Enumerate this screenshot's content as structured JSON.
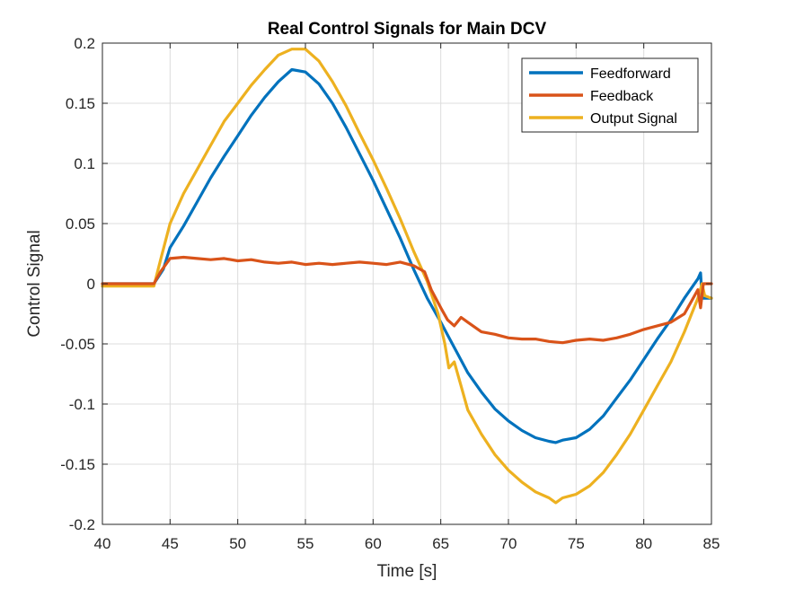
{
  "chart_data": {
    "type": "line",
    "title": "Real Control Signals for Main DCV",
    "xlabel": "Time [s]",
    "ylabel": "Control Signal",
    "xlim": [
      40,
      85
    ],
    "ylim": [
      -0.2,
      0.2
    ],
    "xticks": [
      40,
      45,
      50,
      55,
      60,
      65,
      70,
      75,
      80,
      85
    ],
    "yticks": [
      -0.2,
      -0.15,
      -0.1,
      -0.05,
      0,
      0.05,
      0.1,
      0.15,
      0.2
    ],
    "xtick_labels": [
      "40",
      "45",
      "50",
      "55",
      "60",
      "65",
      "70",
      "75",
      "80",
      "85"
    ],
    "ytick_labels": [
      "-0.2",
      "-0.15",
      "-0.1",
      "-0.05",
      "0",
      "0.05",
      "0.1",
      "0.15",
      "0.2"
    ],
    "grid": true,
    "legend_position": "top-right",
    "series": [
      {
        "name": "Feedforward",
        "color": "#0072BD",
        "x": [
          40,
          43.8,
          44.5,
          45,
          46,
          47,
          48,
          49,
          50,
          51,
          52,
          53,
          54,
          55,
          56,
          57,
          58,
          59,
          60,
          61,
          62,
          63,
          64,
          65,
          66,
          67,
          68,
          69,
          70,
          71,
          72,
          73,
          73.5,
          74,
          75,
          76,
          77,
          78,
          79,
          80,
          81,
          82,
          83,
          84,
          84.2,
          84.3,
          84.5,
          85
        ],
        "y": [
          0,
          0,
          0.012,
          0.03,
          0.048,
          0.068,
          0.088,
          0.106,
          0.123,
          0.14,
          0.155,
          0.168,
          0.178,
          0.176,
          0.166,
          0.15,
          0.13,
          0.108,
          0.086,
          0.062,
          0.038,
          0.012,
          -0.012,
          -0.032,
          -0.053,
          -0.074,
          -0.09,
          -0.104,
          -0.114,
          -0.122,
          -0.128,
          -0.131,
          -0.132,
          -0.13,
          -0.128,
          -0.121,
          -0.11,
          -0.095,
          -0.08,
          -0.063,
          -0.046,
          -0.03,
          -0.012,
          0.004,
          0.009,
          -0.012,
          -0.012,
          -0.012
        ]
      },
      {
        "name": "Feedback",
        "color": "#D95319",
        "x": [
          40,
          43.8,
          44.3,
          45,
          46,
          47,
          48,
          49,
          50,
          51,
          52,
          53,
          54,
          55,
          56,
          57,
          58,
          59,
          60,
          61,
          62,
          63,
          63.8,
          64.3,
          65,
          65.5,
          66,
          66.5,
          67,
          68,
          69,
          70,
          71,
          72,
          73,
          74,
          75,
          76,
          77,
          78,
          79,
          80,
          81,
          82,
          83,
          83.5,
          84,
          84.2,
          84.4,
          85
        ],
        "y": [
          0,
          0,
          0.01,
          0.021,
          0.022,
          0.021,
          0.02,
          0.021,
          0.019,
          0.02,
          0.018,
          0.017,
          0.018,
          0.016,
          0.017,
          0.016,
          0.017,
          0.018,
          0.017,
          0.016,
          0.018,
          0.015,
          0.01,
          -0.005,
          -0.02,
          -0.03,
          -0.035,
          -0.028,
          -0.032,
          -0.04,
          -0.042,
          -0.045,
          -0.046,
          -0.046,
          -0.048,
          -0.049,
          -0.047,
          -0.046,
          -0.047,
          -0.045,
          -0.042,
          -0.038,
          -0.035,
          -0.032,
          -0.025,
          -0.015,
          -0.005,
          -0.02,
          0,
          0
        ]
      },
      {
        "name": "Output Signal",
        "color": "#EDB120",
        "x": [
          40,
          43.8,
          44.3,
          45,
          46,
          47,
          48,
          49,
          50,
          51,
          52,
          53,
          54,
          55,
          56,
          57,
          58,
          59,
          60,
          61,
          62,
          63,
          64,
          64.8,
          65.3,
          65.6,
          66,
          66.5,
          67,
          68,
          69,
          70,
          71,
          72,
          73,
          73.5,
          74,
          75,
          76,
          77,
          78,
          79,
          80,
          81,
          82,
          83,
          84,
          84.3,
          84.5,
          85
        ],
        "y": [
          -0.002,
          -0.002,
          0.02,
          0.05,
          0.075,
          0.095,
          0.115,
          0.135,
          0.15,
          0.165,
          0.178,
          0.19,
          0.195,
          0.195,
          0.185,
          0.168,
          0.148,
          0.125,
          0.103,
          0.079,
          0.054,
          0.027,
          0.002,
          -0.025,
          -0.05,
          -0.07,
          -0.065,
          -0.085,
          -0.105,
          -0.125,
          -0.142,
          -0.155,
          -0.165,
          -0.173,
          -0.178,
          -0.182,
          -0.178,
          -0.175,
          -0.168,
          -0.157,
          -0.142,
          -0.125,
          -0.105,
          -0.085,
          -0.065,
          -0.04,
          -0.012,
          0.0,
          -0.01,
          -0.012
        ]
      }
    ]
  }
}
